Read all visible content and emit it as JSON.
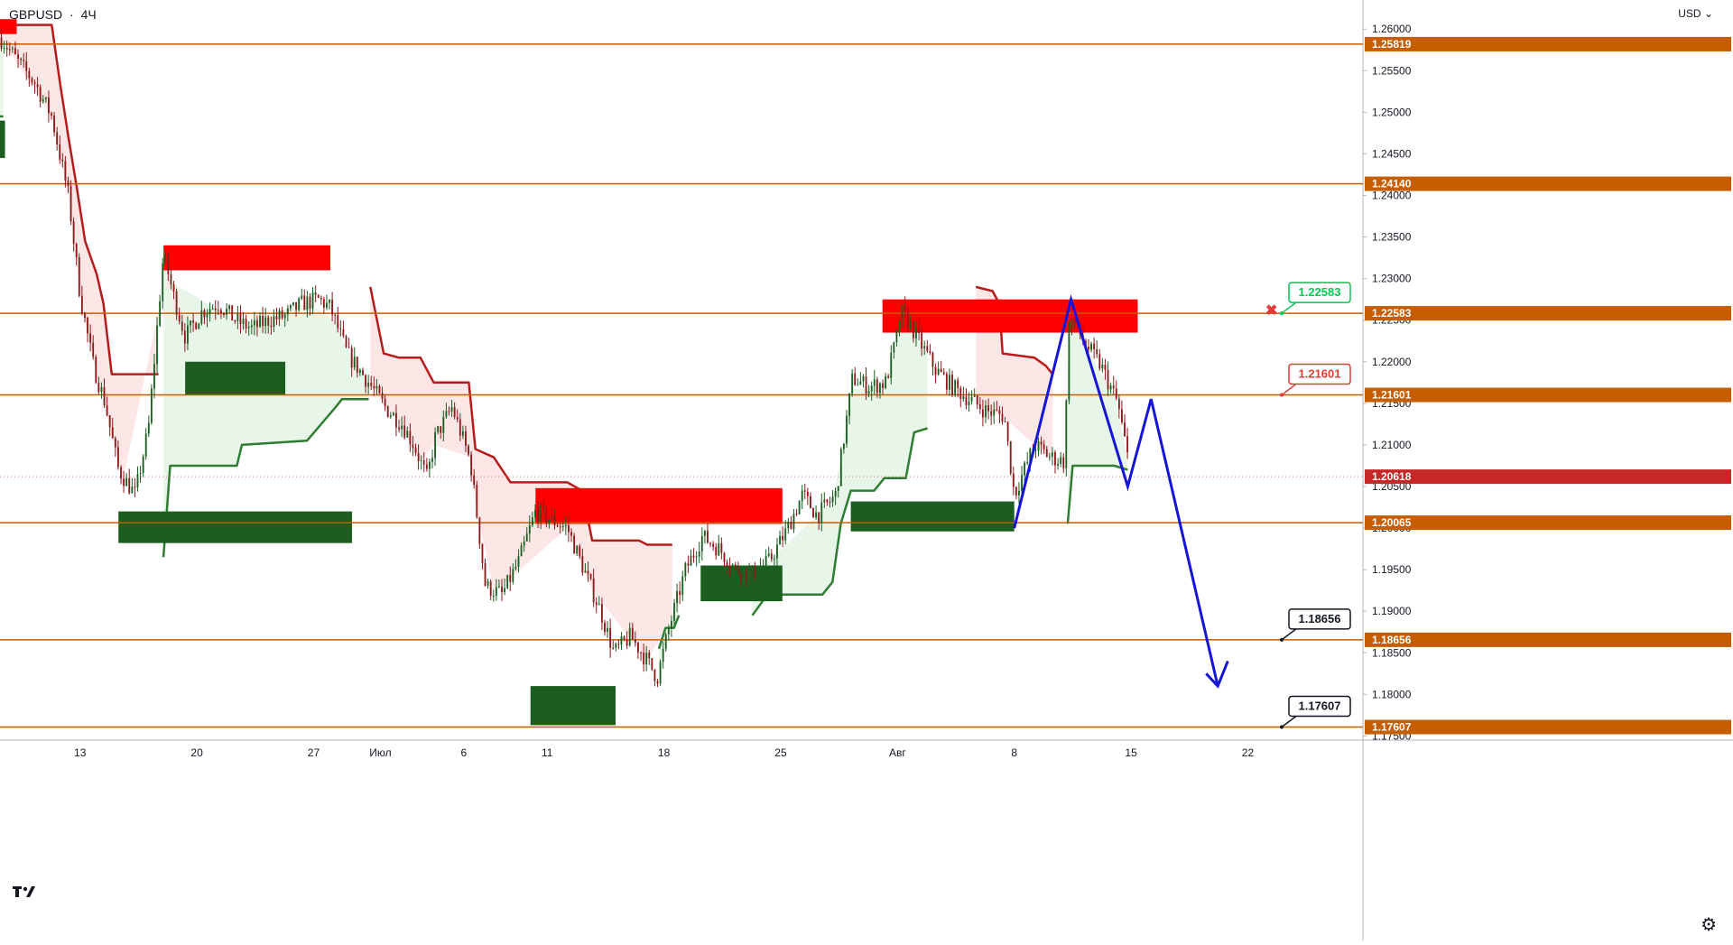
{
  "header": {
    "symbol": "GBPUSD",
    "separator": "·",
    "interval": "4Ч"
  },
  "currency_label": "USD",
  "chart_data": {
    "type": "candlestick",
    "title": "",
    "ylim": [
      1.1745,
      1.2635
    ],
    "y_ticks": [
      "1.26000",
      "1.25500",
      "1.25000",
      "1.24500",
      "1.24000",
      "1.23500",
      "1.23000",
      "1.22500",
      "1.22000",
      "1.21500",
      "1.21000",
      "1.20500",
      "1.20000",
      "1.19500",
      "1.19000",
      "1.18500",
      "1.18000",
      "1.17500"
    ],
    "x_ticks": [
      {
        "label": "13",
        "day": 13
      },
      {
        "label": "20",
        "day": 20
      },
      {
        "label": "27",
        "day": 27
      },
      {
        "label": "Июл",
        "day": 31
      },
      {
        "label": "6",
        "day": 36
      },
      {
        "label": "11",
        "day": 41
      },
      {
        "label": "18",
        "day": 48
      },
      {
        "label": "25",
        "day": 55
      },
      {
        "label": "Авг",
        "day": 62
      },
      {
        "label": "8",
        "day": 69
      },
      {
        "label": "15",
        "day": 76
      },
      {
        "label": "22",
        "day": 83
      }
    ],
    "x_range_days": [
      8.2,
      89.9
    ],
    "levels": [
      1.25819,
      1.2414,
      1.22583,
      1.21601,
      1.20065,
      1.18656,
      1.17607
    ],
    "current_price": 1.20618,
    "level_color": "#c65d00",
    "bull_color": "#1b5e20",
    "bear_color": "#c41c1c",
    "callouts": [
      {
        "label": "1.22583",
        "price": 1.22583,
        "color": "#00c853",
        "marker": "✖"
      },
      {
        "label": "1.21601",
        "price": 1.21601,
        "color": "#e53935"
      },
      {
        "label": "1.18656",
        "price": 1.18656,
        "color": "#131722"
      },
      {
        "label": "1.17607",
        "price": 1.17607,
        "color": "#131722"
      }
    ],
    "supply_zones": [
      {
        "d0": 8.2,
        "d1": 9.2,
        "y0": 1.2594,
        "y1": 1.2612
      },
      {
        "d0": 18.0,
        "d1": 28.0,
        "y0": 1.231,
        "y1": 1.234
      },
      {
        "d0": 40.3,
        "d1": 55.1,
        "y0": 1.2005,
        "y1": 1.2048
      },
      {
        "d0": 61.1,
        "d1": 76.4,
        "y0": 1.2235,
        "y1": 1.2275
      }
    ],
    "demand_zones": [
      {
        "d0": 8.2,
        "d1": 8.5,
        "y0": 1.2445,
        "y1": 1.249
      },
      {
        "d0": 19.3,
        "d1": 25.3,
        "y0": 1.216,
        "y1": 1.22
      },
      {
        "d0": 15.3,
        "d1": 29.3,
        "y0": 1.1982,
        "y1": 1.202
      },
      {
        "d0": 50.2,
        "d1": 55.1,
        "y0": 1.1912,
        "y1": 1.1955
      },
      {
        "d0": 40.0,
        "d1": 45.1,
        "y0": 1.1763,
        "y1": 1.181
      },
      {
        "d0": 59.2,
        "d1": 69.0,
        "y0": 1.1996,
        "y1": 1.2032
      }
    ],
    "trailing_down": [
      {
        "d": 8.2,
        "v": 1.2605
      },
      {
        "d": 11.3,
        "v": 1.2605
      },
      {
        "d": 11.8,
        "v": 1.2535
      },
      {
        "d": 12.3,
        "v": 1.247
      },
      {
        "d": 12.8,
        "v": 1.241
      },
      {
        "d": 13.3,
        "v": 1.2345
      },
      {
        "d": 14.0,
        "v": 1.2305
      },
      {
        "d": 14.4,
        "v": 1.227
      },
      {
        "d": 14.9,
        "v": 1.2185
      },
      {
        "d": 15.6,
        "v": 1.2185
      },
      {
        "d": 17.7,
        "v": 1.2185
      },
      {
        "d": 30.4,
        "v": 1.229
      },
      {
        "d": 31.2,
        "v": 1.221
      },
      {
        "d": 32.1,
        "v": 1.2205
      },
      {
        "d": 33.4,
        "v": 1.2205
      },
      {
        "d": 34.2,
        "v": 1.2175
      },
      {
        "d": 36.3,
        "v": 1.2175
      },
      {
        "d": 36.7,
        "v": 1.2095
      },
      {
        "d": 37.8,
        "v": 1.2085
      },
      {
        "d": 38.8,
        "v": 1.2055
      },
      {
        "d": 42.2,
        "v": 1.2055
      },
      {
        "d": 43.1,
        "v": 1.2045
      },
      {
        "d": 43.7,
        "v": 1.1985
      },
      {
        "d": 46.5,
        "v": 1.1985
      },
      {
        "d": 47.0,
        "v": 1.198
      },
      {
        "d": 48.5,
        "v": 1.198
      },
      {
        "d": 66.7,
        "v": 1.229
      },
      {
        "d": 67.7,
        "v": 1.2285
      },
      {
        "d": 68.1,
        "v": 1.227
      },
      {
        "d": 68.3,
        "v": 1.221
      },
      {
        "d": 70.2,
        "v": 1.2205
      },
      {
        "d": 70.9,
        "v": 1.2195
      },
      {
        "d": 71.3,
        "v": 1.2185
      }
    ],
    "trailing_up": [
      {
        "d": 8.2,
        "v": 1.2495
      },
      {
        "d": 8.4,
        "v": 1.2495
      },
      {
        "d": 18.0,
        "v": 1.1965
      },
      {
        "d": 18.4,
        "v": 1.2075
      },
      {
        "d": 22.4,
        "v": 1.2075
      },
      {
        "d": 22.7,
        "v": 1.21
      },
      {
        "d": 26.6,
        "v": 1.2105
      },
      {
        "d": 28.3,
        "v": 1.2145
      },
      {
        "d": 28.7,
        "v": 1.2155
      },
      {
        "d": 30.3,
        "v": 1.2155
      },
      {
        "d": 47.7,
        "v": 1.1855
      },
      {
        "d": 48.1,
        "v": 1.188
      },
      {
        "d": 48.6,
        "v": 1.188
      },
      {
        "d": 48.9,
        "v": 1.1895
      },
      {
        "d": 53.3,
        "v": 1.1895
      },
      {
        "d": 54.2,
        "v": 1.192
      },
      {
        "d": 57.5,
        "v": 1.192
      },
      {
        "d": 58.1,
        "v": 1.1935
      },
      {
        "d": 58.6,
        "v": 1.2005
      },
      {
        "d": 59.2,
        "v": 1.2045
      },
      {
        "d": 60.6,
        "v": 1.2045
      },
      {
        "d": 61.2,
        "v": 1.206
      },
      {
        "d": 62.5,
        "v": 1.206
      },
      {
        "d": 63.0,
        "v": 1.2115
      },
      {
        "d": 63.8,
        "v": 1.212
      },
      {
        "d": 68.0,
        "v": 1.212
      },
      {
        "d": 72.2,
        "v": 1.2005
      },
      {
        "d": 72.5,
        "v": 1.2075
      },
      {
        "d": 75.0,
        "v": 1.2075
      },
      {
        "d": 75.8,
        "v": 1.207
      }
    ],
    "projection": [
      {
        "d": 69.0,
        "v": 1.2
      },
      {
        "d": 72.4,
        "v": 1.2275
      },
      {
        "d": 75.8,
        "v": 1.205
      },
      {
        "d": 77.2,
        "v": 1.2155
      },
      {
        "d": 81.2,
        "v": 1.181
      }
    ],
    "projection_arrowhead": [
      {
        "d": 80.5,
        "v": 1.1825
      },
      {
        "d": 81.2,
        "v": 1.181
      },
      {
        "d": 81.8,
        "v": 1.184
      }
    ],
    "projection_color": "#1515d8"
  }
}
